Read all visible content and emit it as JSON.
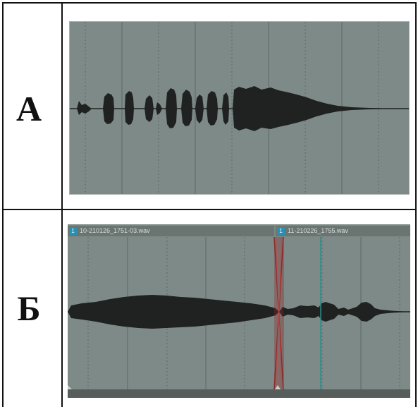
{
  "rows": [
    {
      "label": "А"
    },
    {
      "label": "Б"
    }
  ],
  "clips": [
    {
      "number": "1",
      "filename": "10-210126_1751-03.wav"
    },
    {
      "number": "1",
      "filename": "11-210226_1755.wav"
    }
  ],
  "colors": {
    "panel_background": "#7e8a87",
    "waveform": "#1f2221",
    "grid_line": "#5f6866",
    "crossfade": "#8b2a2a",
    "cursor": "#2f8a8a",
    "clip_badge": "#2b8fb0"
  }
}
